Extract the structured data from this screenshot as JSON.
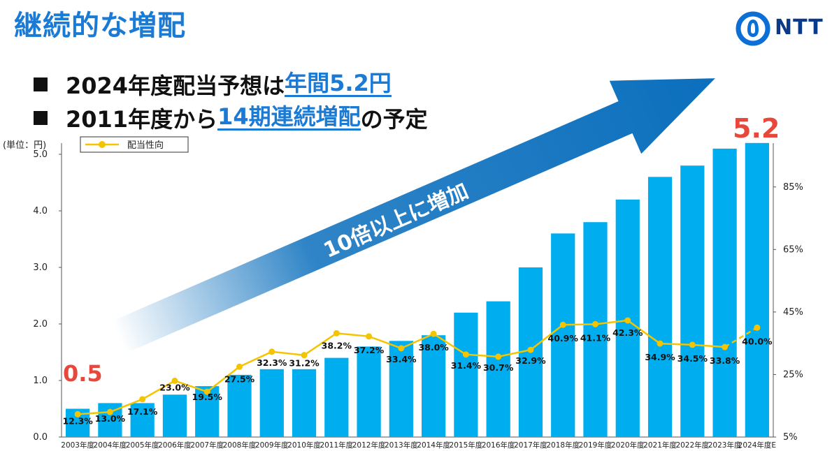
{
  "page": {
    "title": "継続的な増配",
    "logo_text": "NTT",
    "bullets": [
      {
        "prefix": "2024年度配当予想は",
        "highlight": "年間5.2円",
        "suffix": ""
      },
      {
        "prefix": "2011年度から",
        "highlight": "14期連続増配",
        "suffix": "の予定"
      }
    ],
    "arrow_label": "10倍以上に増加",
    "start_value_label": "0.5",
    "end_value_label": "5.2"
  },
  "colors": {
    "title": "#1a7ad4",
    "bar": "#00aeef",
    "line": "#f5c400",
    "arrow": "#0b6fbd",
    "callout": "#e8473b"
  },
  "chart_data": {
    "type": "bar",
    "categories": [
      "2003年度",
      "2004年度",
      "2005年度",
      "2006年度",
      "2007年度",
      "2008年度",
      "2009年度",
      "2010年度",
      "2011年度",
      "2012年度",
      "2013年度",
      "2014年度",
      "2015年度",
      "2016年度",
      "2017年度",
      "2018年度",
      "2019年度",
      "2020年度",
      "2021年度",
      "2022年度",
      "2023年度",
      "2024年度E"
    ],
    "y_axis_label": "(単位：円)",
    "ylim": [
      0,
      5.0
    ],
    "y_ticks": [
      "0.0",
      "1.0",
      "2.0",
      "3.0",
      "4.0",
      "5.0"
    ],
    "y2lim": [
      5,
      95
    ],
    "y2_ticks": [
      "5%",
      "25%",
      "45%",
      "65%",
      "85%"
    ],
    "series": [
      {
        "name": "",
        "type": "bar",
        "axis": "left",
        "values": [
          0.5,
          0.6,
          0.6,
          0.75,
          0.9,
          1.1,
          1.2,
          1.2,
          1.4,
          1.6,
          1.7,
          1.8,
          2.2,
          2.4,
          3.0,
          3.6,
          3.8,
          4.2,
          4.6,
          4.8,
          5.1,
          5.2
        ]
      },
      {
        "name": "配当性向",
        "type": "line",
        "axis": "right",
        "values": [
          12.3,
          13.0,
          17.1,
          23.0,
          19.5,
          27.5,
          32.3,
          31.2,
          38.2,
          37.2,
          33.4,
          38.0,
          31.4,
          30.7,
          32.9,
          40.9,
          41.1,
          42.3,
          34.9,
          34.5,
          33.8,
          40.0
        ],
        "labels": [
          "12.3%",
          "13.0%",
          "17.1%",
          "23.0%",
          "19.5%",
          "27.5%",
          "32.3%",
          "31.2%",
          "38.2%",
          "37.2%",
          "33.4%",
          "38.0%",
          "31.4%",
          "30.7%",
          "32.9%",
          "40.9%",
          "41.1%",
          "42.3%",
          "34.9%",
          "34.5%",
          "33.8%",
          "40.0%"
        ],
        "dashed_last_segment": true
      }
    ],
    "legend": {
      "position": "top-left"
    },
    "grid": false
  }
}
